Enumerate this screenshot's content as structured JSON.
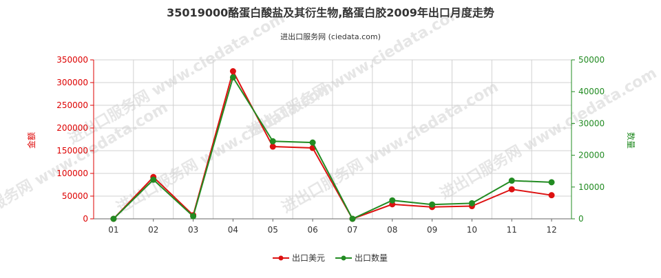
{
  "chart_data": {
    "type": "line",
    "title": "35019000酪蛋白酸盐及其衍生物,酪蛋白胶2009年出口月度走势",
    "subtitle": "进出口服务网 (ciedata.com)",
    "watermark": "进出口服务网 www.ciedata.com",
    "categories": [
      "01",
      "02",
      "03",
      "04",
      "05",
      "06",
      "07",
      "08",
      "09",
      "10",
      "11",
      "12"
    ],
    "y_left": {
      "label": "金额",
      "ylim": [
        0,
        350000
      ],
      "ticks": [
        0,
        50000,
        100000,
        150000,
        200000,
        250000,
        300000,
        350000
      ],
      "color": "#dd0000"
    },
    "y_right": {
      "label": "数量",
      "ylim": [
        0,
        50000
      ],
      "ticks": [
        0,
        10000,
        20000,
        30000,
        40000,
        50000
      ],
      "color": "#228b22"
    },
    "grid": true,
    "legend_position": "bottom",
    "series": [
      {
        "name": "出口美元",
        "axis": "left",
        "color": "#dd1111",
        "values": [
          0,
          92000,
          8000,
          325000,
          159000,
          156000,
          0,
          32000,
          26000,
          28000,
          65000,
          52000
        ]
      },
      {
        "name": "出口数量",
        "axis": "right",
        "color": "#228b22",
        "values": [
          0,
          12300,
          800,
          44500,
          24400,
          24000,
          0,
          5800,
          4500,
          4900,
          12000,
          11500
        ]
      }
    ]
  }
}
